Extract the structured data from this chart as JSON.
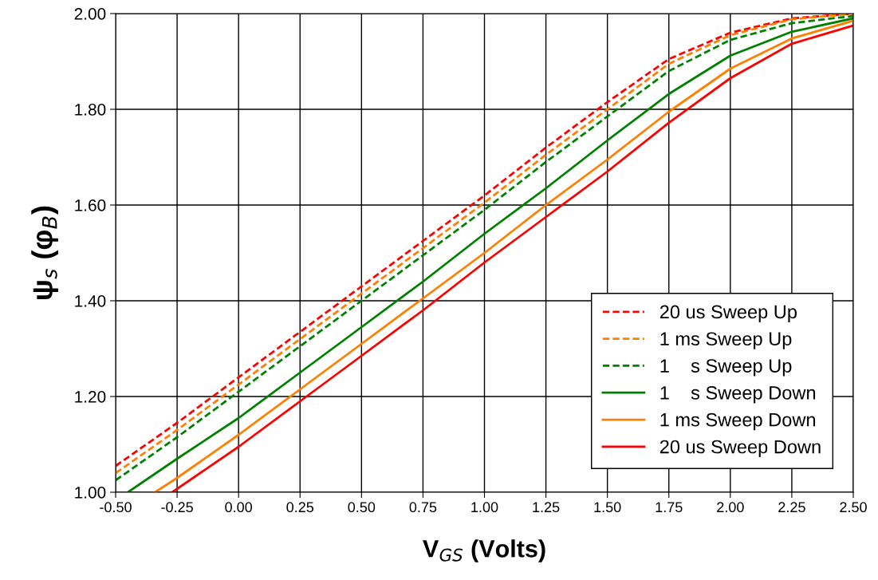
{
  "chart_data": {
    "type": "line",
    "xlabel": "V$_{GS}$ (Volts)",
    "ylabel": "ψ$_{s}$ (φ$_{B}$)",
    "xlim": [
      -0.5,
      2.5
    ],
    "ylim": [
      1.0,
      2.0
    ],
    "xticks": [
      {
        "value": -0.5,
        "label": "-0.50"
      },
      {
        "value": -0.25,
        "label": "-0.25"
      },
      {
        "value": 0,
        "label": "0.00"
      },
      {
        "value": 0.25,
        "label": "0.25"
      },
      {
        "value": 0.5,
        "label": "0.50"
      },
      {
        "value": 0.75,
        "label": "0.75"
      },
      {
        "value": 1.0,
        "label": "1.00"
      },
      {
        "value": 1.25,
        "label": "1.25"
      },
      {
        "value": 1.5,
        "label": "1.50"
      },
      {
        "value": 1.75,
        "label": "1.75"
      },
      {
        "value": 2.0,
        "label": "2.00"
      },
      {
        "value": 2.25,
        "label": "2.25"
      },
      {
        "value": 2.5,
        "label": "2.50"
      }
    ],
    "yticks": [
      {
        "value": 1.0,
        "label": "1.00"
      },
      {
        "value": 1.2,
        "label": "1.20"
      },
      {
        "value": 1.4,
        "label": "1.40"
      },
      {
        "value": 1.6,
        "label": "1.60"
      },
      {
        "value": 1.8,
        "label": "1.80"
      },
      {
        "value": 2.0,
        "label": "2.00"
      }
    ],
    "grid": true,
    "legend": "bottom right",
    "marker": "none",
    "series": [
      {
        "name": "20 us Sweep Up",
        "color": "#ff0000",
        "line_style": "dashed",
        "x": [
          -0.5,
          -0.25,
          0,
          0.25,
          0.5,
          0.75,
          1.0,
          1.25,
          1.5,
          1.75,
          2.0,
          2.25,
          2.5
        ],
        "values": [
          1.055,
          1.145,
          1.24,
          1.335,
          1.43,
          1.525,
          1.62,
          1.72,
          1.815,
          1.905,
          1.96,
          1.99,
          2.0
        ]
      },
      {
        "name": "1 ms Sweep Up",
        "color": "#ff7f00",
        "line_style": "dashed",
        "x": [
          -0.5,
          -0.25,
          0,
          0.25,
          0.5,
          0.75,
          1.0,
          1.25,
          1.5,
          1.75,
          2.0,
          2.25,
          2.5
        ],
        "values": [
          1.04,
          1.13,
          1.225,
          1.32,
          1.415,
          1.51,
          1.605,
          1.705,
          1.8,
          1.895,
          1.955,
          1.988,
          2.0
        ]
      },
      {
        "name": "1    s Sweep Up",
        "color": "#008000",
        "line_style": "dashed",
        "x": [
          -0.5,
          -0.25,
          0,
          0.25,
          0.5,
          0.75,
          1.0,
          1.25,
          1.5,
          1.75,
          2.0,
          2.25,
          2.5
        ],
        "values": [
          1.025,
          1.115,
          1.21,
          1.305,
          1.4,
          1.495,
          1.59,
          1.69,
          1.785,
          1.88,
          1.945,
          1.98,
          1.995
        ]
      },
      {
        "name": "1    s Sweep Down",
        "color": "#008000",
        "line_style": "solid",
        "x": [
          -0.45,
          -0.25,
          0,
          0.25,
          0.5,
          0.75,
          1.0,
          1.25,
          1.5,
          1.75,
          2.0,
          2.25,
          2.5
        ],
        "values": [
          1.0,
          1.07,
          1.155,
          1.25,
          1.345,
          1.44,
          1.54,
          1.635,
          1.735,
          1.832,
          1.912,
          1.962,
          1.99
        ]
      },
      {
        "name": "1 ms Sweep Down",
        "color": "#ff7f00",
        "line_style": "solid",
        "x": [
          -0.34,
          -0.25,
          0,
          0.25,
          0.5,
          0.75,
          1.0,
          1.25,
          1.5,
          1.75,
          2.0,
          2.25,
          2.5
        ],
        "values": [
          1.0,
          1.03,
          1.12,
          1.215,
          1.31,
          1.405,
          1.5,
          1.6,
          1.695,
          1.795,
          1.885,
          1.948,
          1.985
        ]
      },
      {
        "name": "20 us Sweep Down",
        "color": "#ff0000",
        "line_style": "solid",
        "x": [
          -0.27,
          0,
          0.25,
          0.5,
          0.75,
          1.0,
          1.25,
          1.5,
          1.75,
          2.0,
          2.25,
          2.5
        ],
        "values": [
          1.0,
          1.095,
          1.19,
          1.285,
          1.38,
          1.48,
          1.575,
          1.67,
          1.772,
          1.865,
          1.937,
          1.975
        ]
      }
    ]
  }
}
